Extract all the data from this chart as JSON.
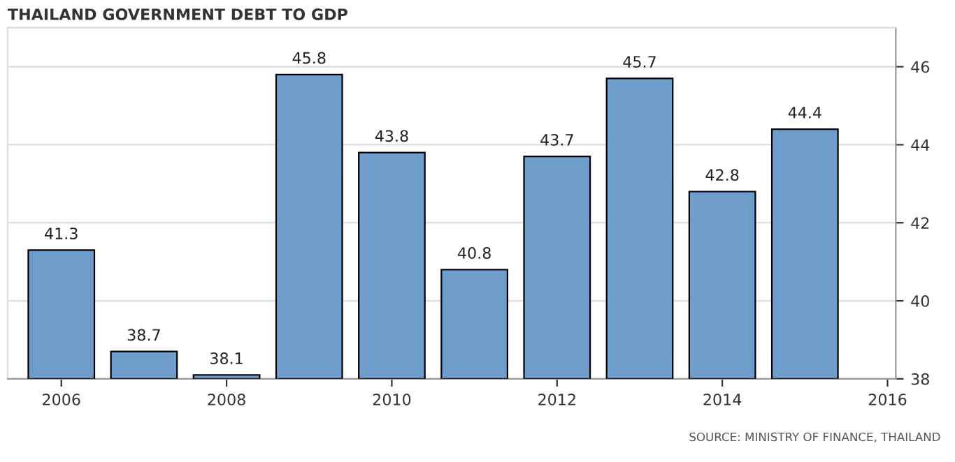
{
  "chart_data": {
    "type": "bar",
    "title": "THAILAND GOVERNMENT DEBT TO GDP",
    "x": [
      2006,
      2007,
      2008,
      2009,
      2010,
      2011,
      2012,
      2013,
      2014,
      2015
    ],
    "values": [
      41.3,
      38.7,
      38.1,
      45.8,
      43.8,
      40.8,
      43.7,
      45.7,
      42.8,
      44.4
    ],
    "color": "#6f9dcc",
    "data_labels": true,
    "xlim": [
      2005.35,
      2016.1
    ],
    "xticks": [
      2006,
      2008,
      2010,
      2012,
      2014,
      2016
    ],
    "ylim": [
      38,
      47
    ],
    "yticks": [
      38,
      40,
      42,
      44,
      46
    ],
    "grid": "y",
    "annotations": [
      "SOURCE: MINISTRY OF FINANCE, THAILAND"
    ]
  }
}
